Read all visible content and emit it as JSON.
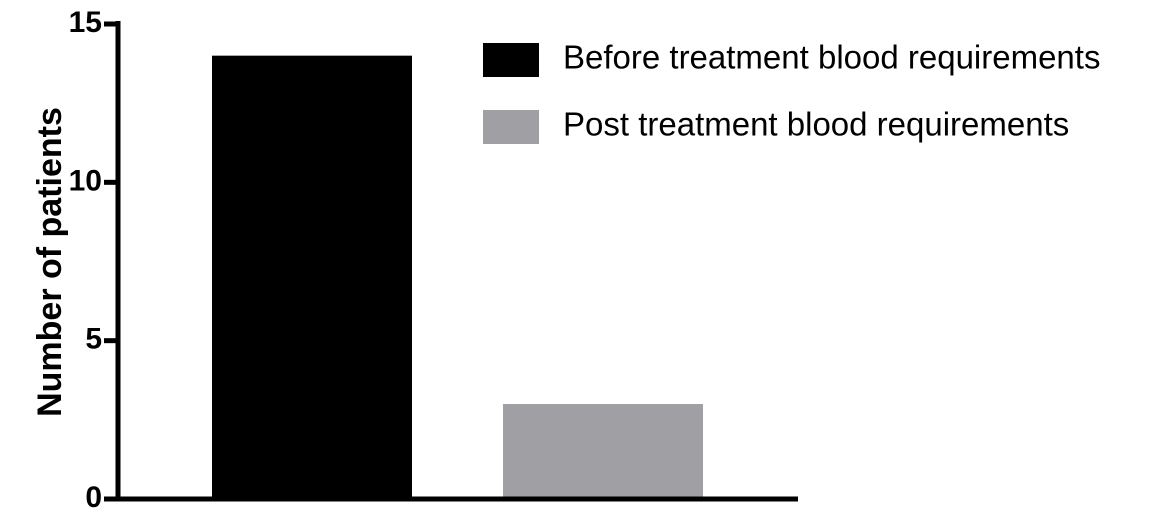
{
  "chart_data": {
    "type": "bar",
    "title": "",
    "xlabel": "",
    "ylabel": "Number of patients",
    "ylim": [
      0,
      15
    ],
    "yticks": [
      0,
      5,
      10,
      15
    ],
    "grid": false,
    "legend_position": "top-right",
    "series": [
      {
        "name": "Before treatment blood requirements",
        "value": 14,
        "color": "#000000"
      },
      {
        "name": "Post treatment blood requirements",
        "value": 3,
        "color": "#a0a0a4"
      }
    ]
  }
}
